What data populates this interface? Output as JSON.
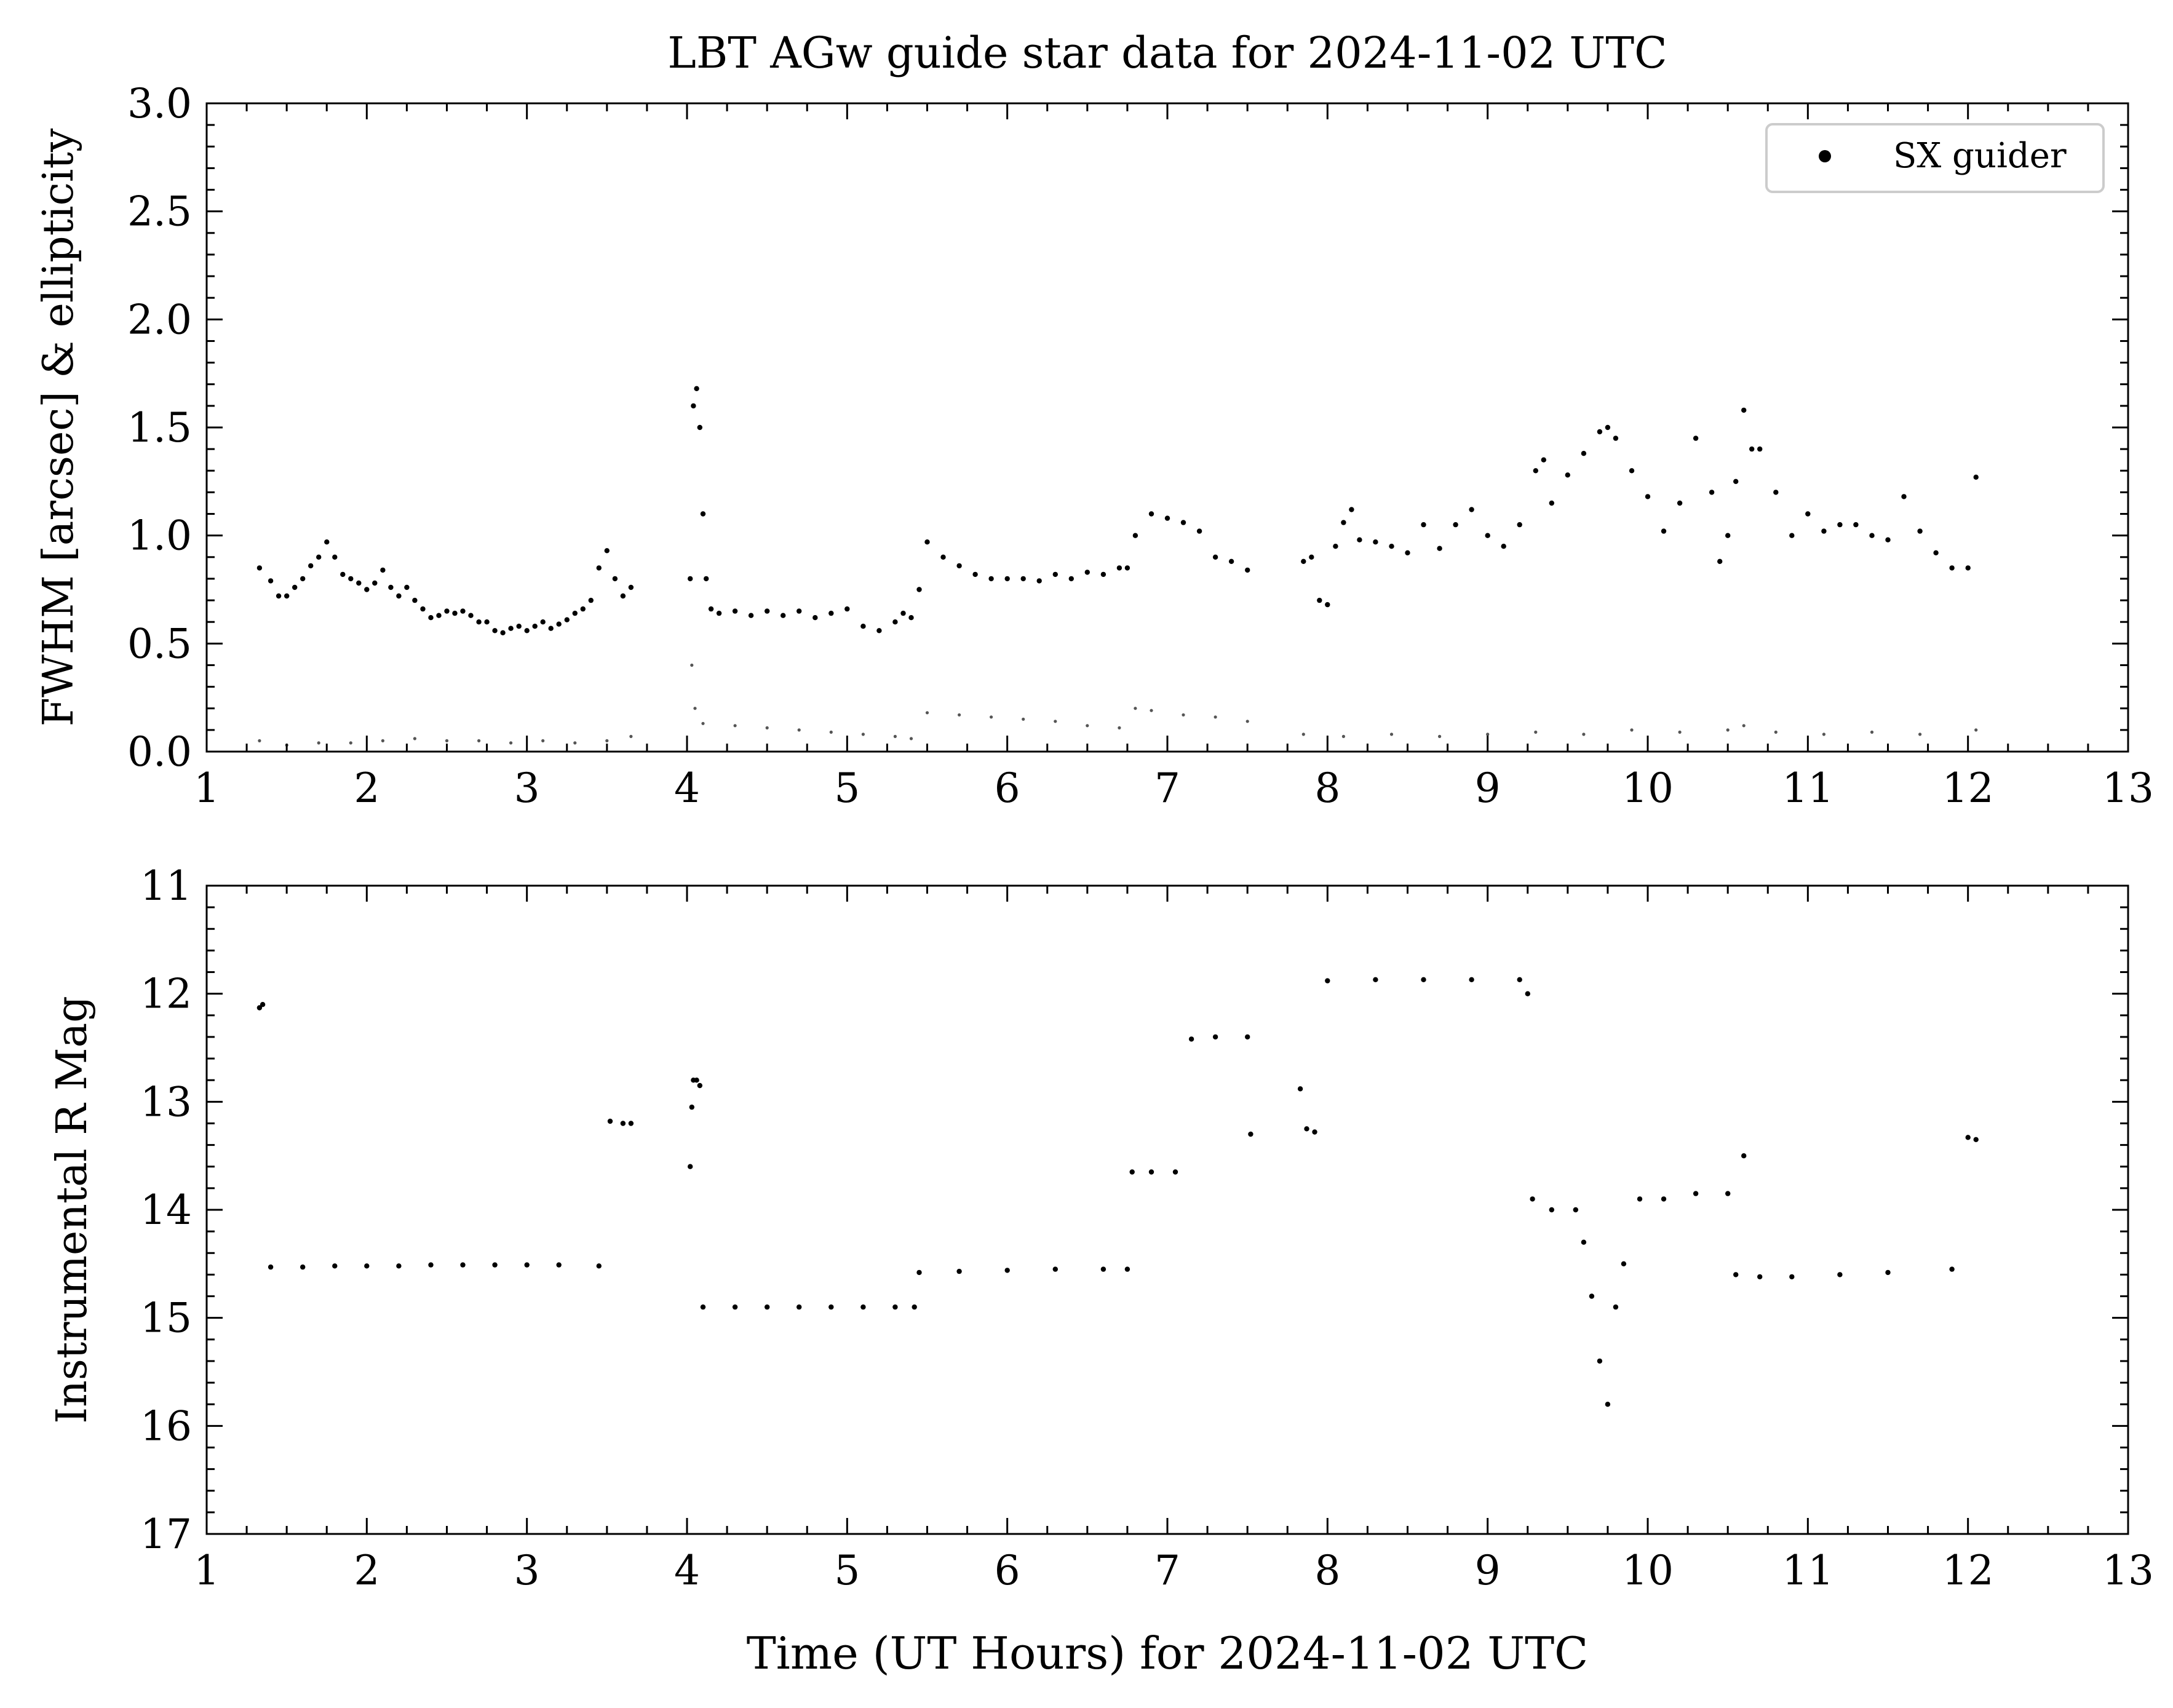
{
  "chart_data": [
    {
      "type": "scatter",
      "title": "LBT AGw guide star data for 2024-11-02 UTC",
      "xlabel": "",
      "ylabel": "FWHM [arcsec] & ellipticity",
      "xlim": [
        1,
        13
      ],
      "ylim": [
        0.0,
        3.0
      ],
      "xticks": [
        1,
        2,
        3,
        4,
        5,
        6,
        7,
        8,
        9,
        10,
        11,
        12,
        13
      ],
      "yticks": [
        "0.0",
        "0.5",
        "1.0",
        "1.5",
        "2.0",
        "2.5",
        "3.0"
      ],
      "legend": {
        "position": "top-right",
        "entries": [
          "SX guider"
        ]
      },
      "series": [
        {
          "name": "SX guider",
          "color": "#000000",
          "x": [
            1.33,
            1.4,
            1.45,
            1.5,
            1.55,
            1.6,
            1.65,
            1.7,
            1.75,
            1.8,
            1.85,
            1.9,
            1.95,
            2.0,
            2.05,
            2.1,
            2.15,
            2.2,
            2.25,
            2.3,
            2.35,
            2.4,
            2.45,
            2.5,
            2.55,
            2.6,
            2.65,
            2.7,
            2.75,
            2.8,
            2.85,
            2.9,
            2.95,
            3.0,
            3.05,
            3.1,
            3.15,
            3.2,
            3.25,
            3.3,
            3.35,
            3.4,
            3.45,
            3.5,
            3.55,
            3.6,
            3.65,
            4.02,
            4.04,
            4.06,
            4.08,
            4.1,
            4.12,
            4.15,
            4.2,
            4.3,
            4.4,
            4.5,
            4.6,
            4.7,
            4.8,
            4.9,
            5.0,
            5.1,
            5.2,
            5.3,
            5.35,
            5.4,
            5.45,
            5.5,
            5.6,
            5.7,
            5.8,
            5.9,
            6.0,
            6.1,
            6.2,
            6.3,
            6.4,
            6.5,
            6.6,
            6.7,
            6.75,
            6.8,
            6.9,
            7.0,
            7.1,
            7.2,
            7.3,
            7.4,
            7.5,
            7.85,
            7.9,
            7.95,
            8.0,
            8.05,
            8.1,
            8.15,
            8.2,
            8.3,
            8.4,
            8.5,
            8.6,
            8.7,
            8.8,
            8.9,
            9.0,
            9.1,
            9.2,
            9.3,
            9.35,
            9.4,
            9.5,
            9.6,
            9.7,
            9.75,
            9.8,
            9.9,
            10.0,
            10.1,
            10.2,
            10.3,
            10.4,
            10.45,
            10.5,
            10.55,
            10.6,
            10.65,
            10.7,
            10.8,
            10.9,
            11.0,
            11.1,
            11.2,
            11.3,
            11.4,
            11.5,
            11.6,
            11.7,
            11.8,
            11.9,
            12.0,
            12.05
          ],
          "y": [
            0.85,
            0.79,
            0.72,
            0.72,
            0.76,
            0.8,
            0.86,
            0.9,
            0.97,
            0.9,
            0.82,
            0.8,
            0.78,
            0.75,
            0.78,
            0.84,
            0.76,
            0.72,
            0.76,
            0.7,
            0.66,
            0.62,
            0.63,
            0.65,
            0.64,
            0.65,
            0.63,
            0.6,
            0.6,
            0.56,
            0.55,
            0.57,
            0.58,
            0.56,
            0.58,
            0.6,
            0.57,
            0.59,
            0.61,
            0.64,
            0.66,
            0.7,
            0.85,
            0.93,
            0.8,
            0.72,
            0.76,
            0.8,
            1.6,
            1.68,
            1.5,
            1.1,
            0.8,
            0.66,
            0.64,
            0.65,
            0.63,
            0.65,
            0.63,
            0.65,
            0.62,
            0.64,
            0.66,
            0.58,
            0.56,
            0.6,
            0.64,
            0.62,
            0.75,
            0.97,
            0.9,
            0.86,
            0.82,
            0.8,
            0.8,
            0.8,
            0.79,
            0.82,
            0.8,
            0.83,
            0.82,
            0.85,
            0.85,
            1.0,
            1.1,
            1.08,
            1.06,
            1.02,
            0.9,
            0.88,
            0.84,
            0.88,
            0.9,
            0.7,
            0.68,
            0.95,
            1.06,
            1.12,
            0.98,
            0.97,
            0.95,
            0.92,
            1.05,
            0.94,
            1.05,
            1.12,
            1.0,
            0.95,
            1.05,
            1.3,
            1.35,
            1.15,
            1.28,
            1.38,
            1.48,
            1.5,
            1.45,
            1.3,
            1.18,
            1.02,
            1.15,
            1.45,
            1.2,
            0.88,
            1.0,
            1.25,
            1.58,
            1.4,
            1.4,
            1.2,
            1.0,
            1.1,
            1.02,
            1.05,
            1.05,
            1.0,
            0.98,
            1.18,
            1.02,
            0.92,
            0.85,
            0.85,
            1.27
          ]
        },
        {
          "name": "",
          "color": "#555555",
          "x": [
            1.33,
            1.5,
            1.7,
            1.9,
            2.1,
            2.3,
            2.5,
            2.7,
            2.9,
            3.1,
            3.3,
            3.5,
            3.65,
            4.03,
            4.05,
            4.1,
            4.3,
            4.5,
            4.7,
            4.9,
            5.1,
            5.3,
            5.4,
            5.5,
            5.7,
            5.9,
            6.1,
            6.3,
            6.5,
            6.7,
            6.8,
            6.9,
            7.1,
            7.3,
            7.5,
            7.85,
            8.1,
            8.4,
            8.7,
            9.0,
            9.3,
            9.6,
            9.9,
            10.2,
            10.5,
            10.6,
            10.8,
            11.1,
            11.4,
            11.7,
            12.05
          ],
          "y": [
            0.05,
            0.03,
            0.04,
            0.04,
            0.05,
            0.06,
            0.05,
            0.05,
            0.04,
            0.05,
            0.04,
            0.05,
            0.07,
            0.4,
            0.2,
            0.13,
            0.12,
            0.11,
            0.1,
            0.09,
            0.08,
            0.07,
            0.06,
            0.18,
            0.17,
            0.16,
            0.15,
            0.14,
            0.12,
            0.11,
            0.2,
            0.19,
            0.17,
            0.16,
            0.14,
            0.08,
            0.07,
            0.08,
            0.07,
            0.08,
            0.09,
            0.08,
            0.1,
            0.09,
            0.1,
            0.12,
            0.09,
            0.08,
            0.09,
            0.08,
            0.1
          ]
        }
      ]
    },
    {
      "type": "scatter",
      "title": "",
      "xlabel": "Time (UT Hours) for 2024-11-02 UTC",
      "ylabel": "Instrumental R Mag",
      "xlim": [
        1,
        13
      ],
      "ylim": [
        17,
        11
      ],
      "y_inverted": true,
      "xticks": [
        1,
        2,
        3,
        4,
        5,
        6,
        7,
        8,
        9,
        10,
        11,
        12,
        13
      ],
      "yticks": [
        11,
        12,
        13,
        14,
        15,
        16,
        17
      ],
      "series": [
        {
          "name": "SX guider",
          "color": "#000000",
          "x": [
            1.33,
            1.35,
            1.4,
            1.6,
            1.8,
            2.0,
            2.2,
            2.4,
            2.6,
            2.8,
            3.0,
            3.2,
            3.45,
            3.52,
            3.6,
            3.65,
            4.02,
            4.03,
            4.04,
            4.06,
            4.08,
            4.1,
            4.3,
            4.5,
            4.7,
            4.9,
            5.1,
            5.3,
            5.42,
            5.45,
            5.7,
            6.0,
            6.3,
            6.6,
            6.75,
            6.78,
            6.9,
            7.05,
            7.15,
            7.3,
            7.5,
            7.52,
            7.83,
            7.87,
            7.92,
            8.0,
            8.3,
            8.6,
            8.9,
            9.2,
            9.25,
            9.28,
            9.4,
            9.55,
            9.6,
            9.65,
            9.7,
            9.75,
            9.8,
            9.85,
            9.95,
            10.1,
            10.3,
            10.5,
            10.55,
            10.6,
            10.7,
            10.9,
            11.2,
            11.5,
            11.9,
            12.0,
            12.05
          ],
          "y": [
            12.13,
            12.1,
            14.53,
            14.53,
            14.52,
            14.52,
            14.52,
            14.51,
            14.51,
            14.51,
            14.51,
            14.51,
            14.52,
            13.18,
            13.2,
            13.2,
            13.6,
            13.05,
            12.8,
            12.8,
            12.85,
            14.9,
            14.9,
            14.9,
            14.9,
            14.9,
            14.9,
            14.9,
            14.9,
            14.58,
            14.57,
            14.56,
            14.55,
            14.55,
            14.55,
            13.65,
            13.65,
            13.65,
            12.42,
            12.4,
            12.4,
            13.3,
            12.88,
            13.25,
            13.28,
            11.88,
            11.87,
            11.87,
            11.87,
            11.87,
            12.0,
            13.9,
            14.0,
            14.0,
            14.3,
            14.8,
            15.4,
            15.8,
            14.9,
            14.5,
            13.9,
            13.9,
            13.85,
            13.85,
            14.6,
            13.5,
            14.62,
            14.62,
            14.6,
            14.58,
            14.55,
            13.33,
            13.35
          ]
        }
      ]
    }
  ]
}
